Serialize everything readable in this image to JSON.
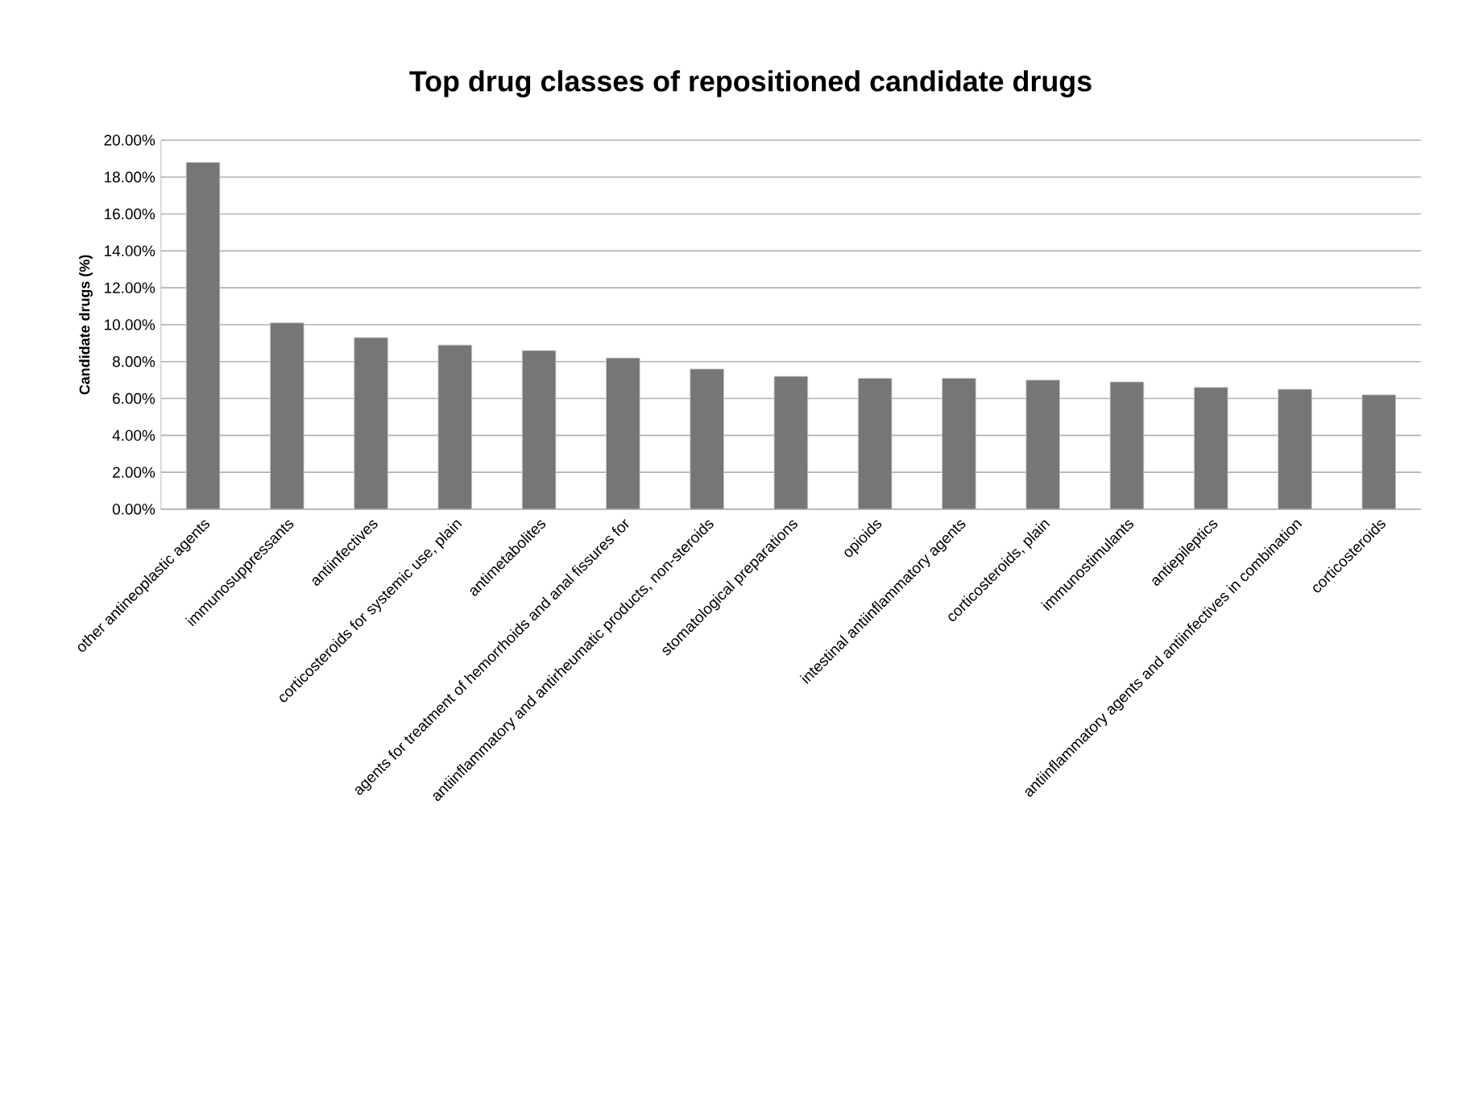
{
  "chart_data": {
    "type": "bar",
    "title": "Top drug classes of repositioned candidate drugs",
    "ylabel": "Candidate drugs (%)",
    "categories": [
      "other antineoplastic agents",
      "immunosuppressants",
      "antiinfectives",
      "corticosteroids for systemic use, plain",
      "antimetabolites",
      "agents for treatment of hemorrhoids and anal fissures for",
      "antiinflammatory and antirheumatic products, non-steroids",
      "stomatological preparations",
      "opioids",
      "intestinal antiinflammatory agents",
      "corticosteroids, plain",
      "immunostimulants",
      "antiepileptics",
      "antiinflammatory agents and antiinfectives in combination",
      "corticosteroids"
    ],
    "values": [
      18.8,
      10.1,
      9.3,
      8.9,
      8.6,
      8.2,
      7.6,
      7.2,
      7.1,
      7.1,
      7.0,
      6.9,
      6.6,
      6.5,
      6.2
    ],
    "color": "#767676",
    "ylim": [
      0,
      20
    ],
    "yticks": [
      {
        "value": 0,
        "label": "0.00%"
      },
      {
        "value": 2,
        "label": "2.00%"
      },
      {
        "value": 4,
        "label": "4.00%"
      },
      {
        "value": 6,
        "label": "6.00%"
      },
      {
        "value": 8,
        "label": "8.00%"
      },
      {
        "value": 10,
        "label": "10.00%"
      },
      {
        "value": 12,
        "label": "12.00%"
      },
      {
        "value": 14,
        "label": "14.00%"
      },
      {
        "value": 16,
        "label": "16.00%"
      },
      {
        "value": 18,
        "label": "18.00%"
      },
      {
        "value": 20,
        "label": "20.00%"
      }
    ],
    "grid": "y"
  }
}
